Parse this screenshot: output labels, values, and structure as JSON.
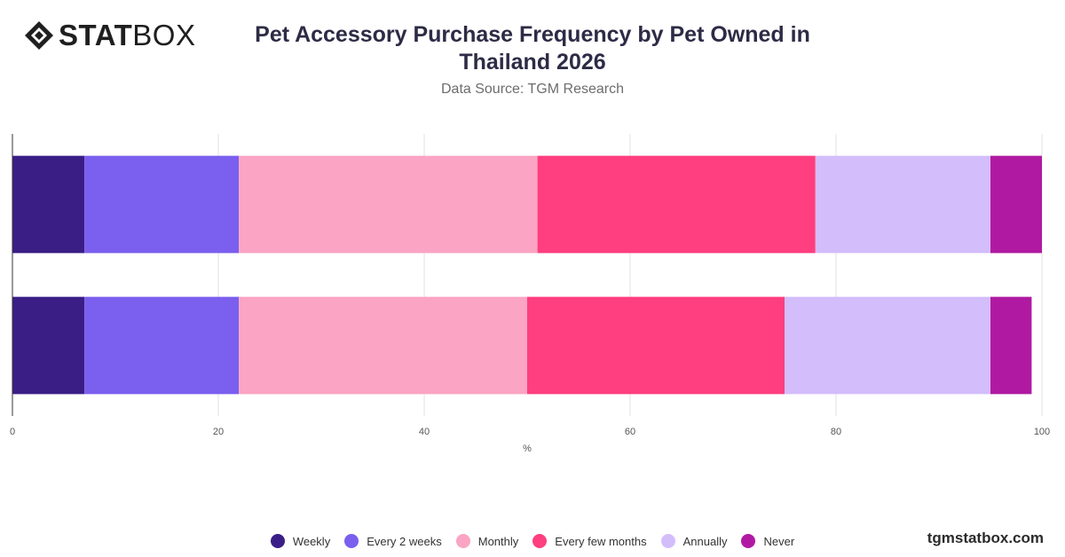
{
  "brand": {
    "logo_bold": "STAT",
    "logo_light": "BOX",
    "site": "tgmstatbox.com"
  },
  "chart_data": {
    "type": "bar",
    "orientation": "horizontal",
    "stacked": true,
    "title": "Pet Accessory Purchase Frequency by Pet Owned in Thailand 2026",
    "subtitle": "Data Source: TGM Research",
    "xlabel": "%",
    "ylabel": "",
    "xlim": [
      0,
      100
    ],
    "xticks": [
      0,
      20,
      40,
      60,
      80,
      100
    ],
    "grid": true,
    "legend_position": "bottom",
    "categories": [
      "",
      ""
    ],
    "series": [
      {
        "name": "Weekly",
        "color": "#3a1e86",
        "values": [
          7,
          7
        ]
      },
      {
        "name": "Every 2 weeks",
        "color": "#7b5fee",
        "values": [
          15,
          15
        ]
      },
      {
        "name": "Monthly",
        "color": "#fba4c3",
        "values": [
          29,
          28
        ]
      },
      {
        "name": "Every few months",
        "color": "#ff3f7f",
        "values": [
          27,
          25
        ]
      },
      {
        "name": "Annually",
        "color": "#d4bdfb",
        "values": [
          17,
          20
        ]
      },
      {
        "name": "Never",
        "color": "#b01aa2",
        "values": [
          5,
          4
        ]
      }
    ]
  }
}
